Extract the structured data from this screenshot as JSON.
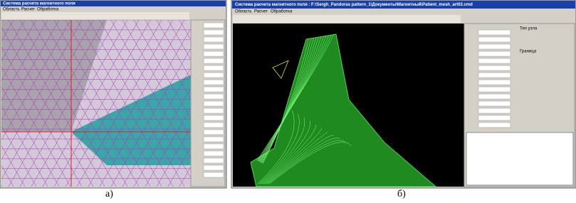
{
  "figure_a": {
    "window_title": "Система расчета магнитного поля",
    "menu": [
      "Область",
      "Расчет",
      "Обработка"
    ],
    "caption": "а)"
  },
  "figure_b": {
    "window_title": "Система расчета магнитного поля : F:\\Sergh_Pandoras pattern_1\\Документы\\Магнитный\\Patient_mesh_art03.cmd",
    "menu": [
      "Область",
      "Расчет",
      "Обработка"
    ],
    "panel_labels": [
      "Тип узла",
      "Граница"
    ],
    "caption": "б)"
  }
}
